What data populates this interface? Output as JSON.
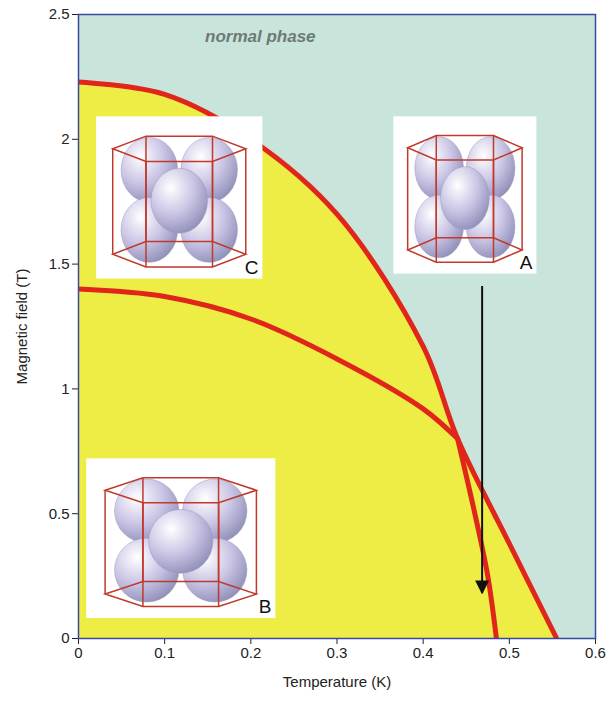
{
  "chart_data": {
    "type": "line",
    "x_label": "Temperature (K)",
    "y_label": "Magnetic field (T)",
    "xlim": [
      0,
      0.6
    ],
    "ylim": [
      0,
      2.5
    ],
    "xticks": [
      0,
      0.1,
      0.2,
      0.3,
      0.4,
      0.5,
      0.6
    ],
    "yticks": [
      0,
      0.5,
      1,
      1.5,
      2,
      2.5
    ],
    "grid": false,
    "series": [
      {
        "type": "area",
        "color": "#eded45",
        "x": [
          0,
          0.1,
          0.2,
          0.3,
          0.4,
          0.44,
          0.5,
          0.555
        ],
        "values": [
          2.23,
          2.18,
          2.0,
          1.7,
          1.17,
          0.8,
          0.38,
          0
        ]
      },
      {
        "type": "line",
        "color": "#e0261a",
        "x": [
          0,
          0.1,
          0.2,
          0.3,
          0.4,
          0.44,
          0.5,
          0.555
        ],
        "values": [
          2.23,
          2.18,
          2.0,
          1.7,
          1.17,
          0.8,
          0.38,
          0
        ]
      },
      {
        "type": "line",
        "color": "#e0261a",
        "x": [
          0,
          0.1,
          0.2,
          0.3,
          0.4,
          0.44
        ],
        "values": [
          1.4,
          1.37,
          1.28,
          1.12,
          0.92,
          0.8
        ]
      },
      {
        "type": "line",
        "color": "#e0261a",
        "x": [
          0.44,
          0.46,
          0.475,
          0.485
        ],
        "values": [
          0.8,
          0.5,
          0.25,
          0
        ]
      }
    ],
    "annotations": [
      {
        "text": "normal phase",
        "x": 0.211,
        "y": 2.41
      }
    ],
    "arrows": [
      {
        "x1": 0.469,
        "y1": 1.41,
        "x2": 0.469,
        "y2": 0.18
      }
    ],
    "insets": [
      {
        "label": "A",
        "xlim": [
          0.366,
          0.532
        ],
        "ylim": [
          1.46,
          2.09
        ]
      },
      {
        "label": "C",
        "xlim": [
          0.021,
          0.214
        ],
        "ylim": [
          1.44,
          2.09
        ]
      },
      {
        "label": "B",
        "xlim": [
          0.0095,
          0.229
        ],
        "ylim": [
          0.08,
          0.72
        ]
      }
    ]
  }
}
